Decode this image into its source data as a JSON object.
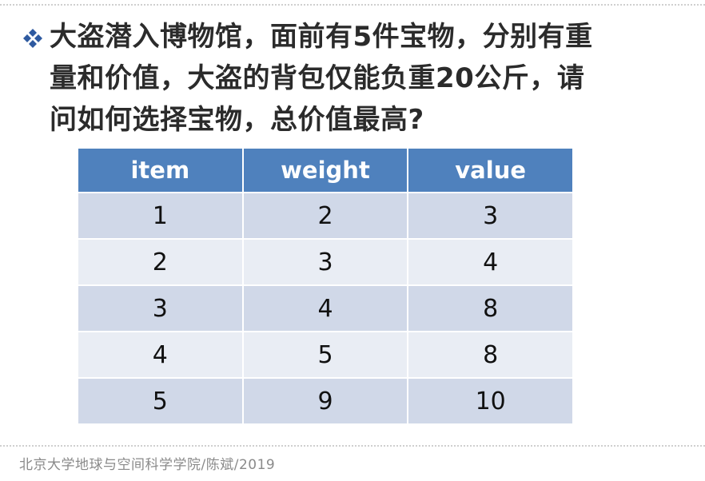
{
  "slide": {
    "bullet_icon": "diamond-bullet-icon",
    "question": "大盗潜入博物馆，面前有5件宝物，分别有重量和价值，大盗的背包仅能负重20公斤，请问如何选择宝物，总价值最高?"
  },
  "table": {
    "headers": [
      "item",
      "weight",
      "value"
    ],
    "rows": [
      [
        "1",
        "2",
        "3"
      ],
      [
        "2",
        "3",
        "4"
      ],
      [
        "3",
        "4",
        "8"
      ],
      [
        "4",
        "5",
        "8"
      ],
      [
        "5",
        "9",
        "10"
      ]
    ]
  },
  "footer": {
    "text": "北京大学地球与空间科学学院/陈斌/2019"
  },
  "colors": {
    "header_bg": "#4f81bd",
    "row_odd": "#d0d8e8",
    "row_even": "#e9edf4",
    "bullet": "#2e5aa0"
  }
}
